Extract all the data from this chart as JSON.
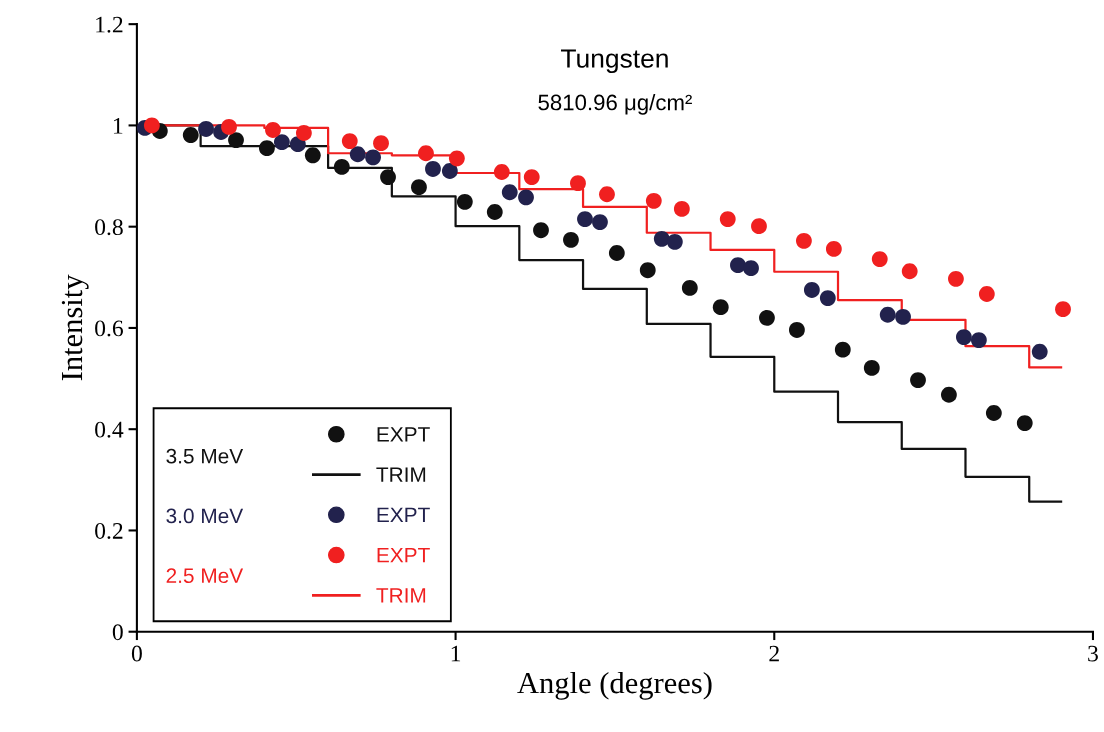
{
  "chart_data": {
    "type": "scatter",
    "title": "Tungsten",
    "subtitle": "5810.96 μg/cm²",
    "xlabel": "Angle (degrees)",
    "ylabel": "Intensity",
    "xlim": [
      0,
      3
    ],
    "xticks": [
      0,
      1,
      2,
      3
    ],
    "ylim": [
      0,
      1.2
    ],
    "yticks": [
      0,
      0.2,
      0.4,
      0.6,
      0.8,
      1,
      1.2
    ],
    "grid": false,
    "legend": "bottom left",
    "annotations": [
      "3.5 MeV",
      "3.0 MeV",
      "2.5 MeV"
    ],
    "series": [
      {
        "name": "EXPT",
        "marker": "circle",
        "color": "#111111",
        "x": [
          0.072,
          0.169,
          0.311,
          0.408,
          0.552,
          0.643,
          0.788,
          0.885,
          1.029,
          1.123,
          1.268,
          1.362,
          1.506,
          1.603,
          1.735,
          1.832,
          1.977,
          2.071,
          2.215,
          2.306,
          2.451,
          2.548,
          2.689,
          2.786
        ],
        "values": [
          0.989,
          0.981,
          0.971,
          0.955,
          0.941,
          0.918,
          0.898,
          0.878,
          0.849,
          0.829,
          0.793,
          0.774,
          0.748,
          0.714,
          0.679,
          0.641,
          0.62,
          0.596,
          0.557,
          0.521,
          0.497,
          0.468,
          0.432,
          0.412
        ]
      },
      {
        "name": "TRIM",
        "type": "step",
        "color": "#111111",
        "x": [
          0,
          0.2,
          0.6,
          0.8,
          1.0,
          1.2,
          1.4,
          1.6,
          1.8,
          2.0,
          2.2,
          2.4,
          2.6,
          2.8,
          2.9
        ],
        "values": [
          1.0,
          0.959,
          0.916,
          0.86,
          0.801,
          0.734,
          0.677,
          0.608,
          0.543,
          0.474,
          0.414,
          0.361,
          0.306,
          0.257,
          0.257
        ]
      },
      {
        "name": "EXPT",
        "marker": "circle",
        "color": "#22224d",
        "x": [
          0.025,
          0.217,
          0.264,
          0.455,
          0.505,
          0.693,
          0.741,
          0.929,
          0.982,
          1.17,
          1.221,
          1.406,
          1.453,
          1.647,
          1.688,
          1.886,
          1.927,
          2.118,
          2.168,
          2.356,
          2.404,
          2.595,
          2.642,
          2.833
        ],
        "values": [
          0.995,
          0.993,
          0.987,
          0.967,
          0.963,
          0.943,
          0.937,
          0.914,
          0.91,
          0.868,
          0.858,
          0.815,
          0.809,
          0.776,
          0.77,
          0.724,
          0.718,
          0.675,
          0.659,
          0.626,
          0.622,
          0.582,
          0.576,
          0.553
        ]
      },
      {
        "name": "EXPT",
        "marker": "circle",
        "color": "#f02020",
        "x": [
          0.047,
          0.289,
          0.427,
          0.524,
          0.668,
          0.766,
          0.907,
          1.004,
          1.145,
          1.239,
          1.384,
          1.475,
          1.622,
          1.71,
          1.854,
          1.952,
          2.093,
          2.187,
          2.331,
          2.425,
          2.57,
          2.667,
          2.906
        ],
        "values": [
          1.0,
          0.997,
          0.991,
          0.985,
          0.969,
          0.965,
          0.945,
          0.935,
          0.908,
          0.898,
          0.886,
          0.864,
          0.851,
          0.835,
          0.815,
          0.801,
          0.772,
          0.756,
          0.736,
          0.712,
          0.697,
          0.667,
          0.637
        ]
      },
      {
        "name": "TRIM",
        "type": "step",
        "color": "#f02020",
        "x": [
          0,
          0.4,
          0.6,
          0.8,
          1.0,
          1.2,
          1.4,
          1.6,
          1.8,
          2.0,
          2.2,
          2.4,
          2.6,
          2.8,
          2.9
        ],
        "values": [
          1.0,
          0.995,
          0.945,
          0.941,
          0.906,
          0.874,
          0.839,
          0.788,
          0.754,
          0.711,
          0.655,
          0.616,
          0.564,
          0.522,
          0.522
        ]
      }
    ]
  }
}
